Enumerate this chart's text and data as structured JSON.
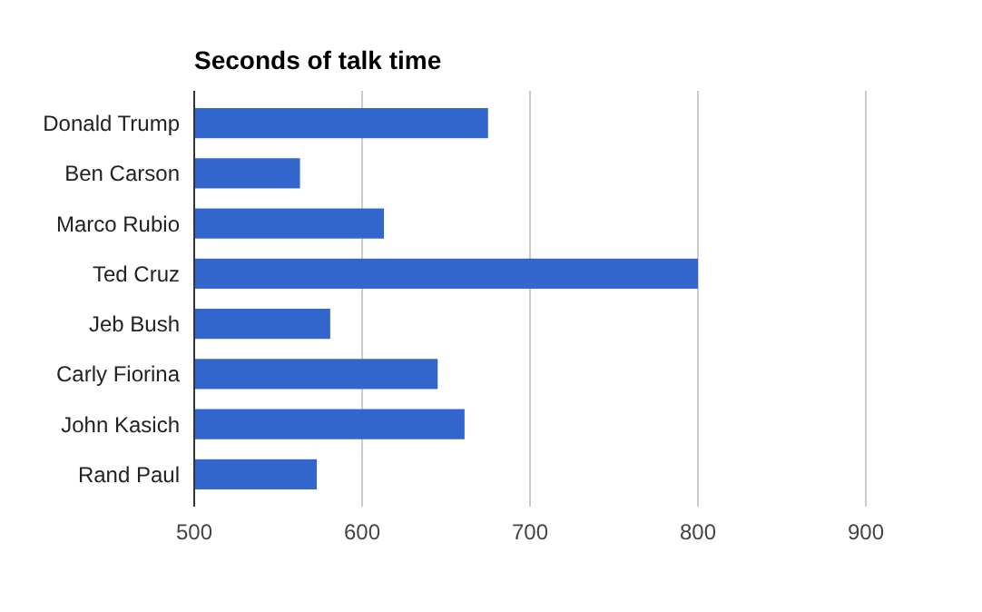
{
  "chart_data": {
    "type": "bar",
    "orientation": "horizontal",
    "title": "Seconds of talk time",
    "categories": [
      "Donald Trump",
      "Ben Carson",
      "Marco Rubio",
      "Ted Cruz",
      "Jeb Bush",
      "Carly Fiorina",
      "John Kasich",
      "Rand Paul"
    ],
    "values": [
      675,
      563,
      613,
      800,
      581,
      645,
      661,
      573
    ],
    "color": "#3366cc",
    "xlim": [
      500,
      900
    ],
    "xticks": [
      500,
      600,
      700,
      800,
      900
    ],
    "grid": "x"
  }
}
